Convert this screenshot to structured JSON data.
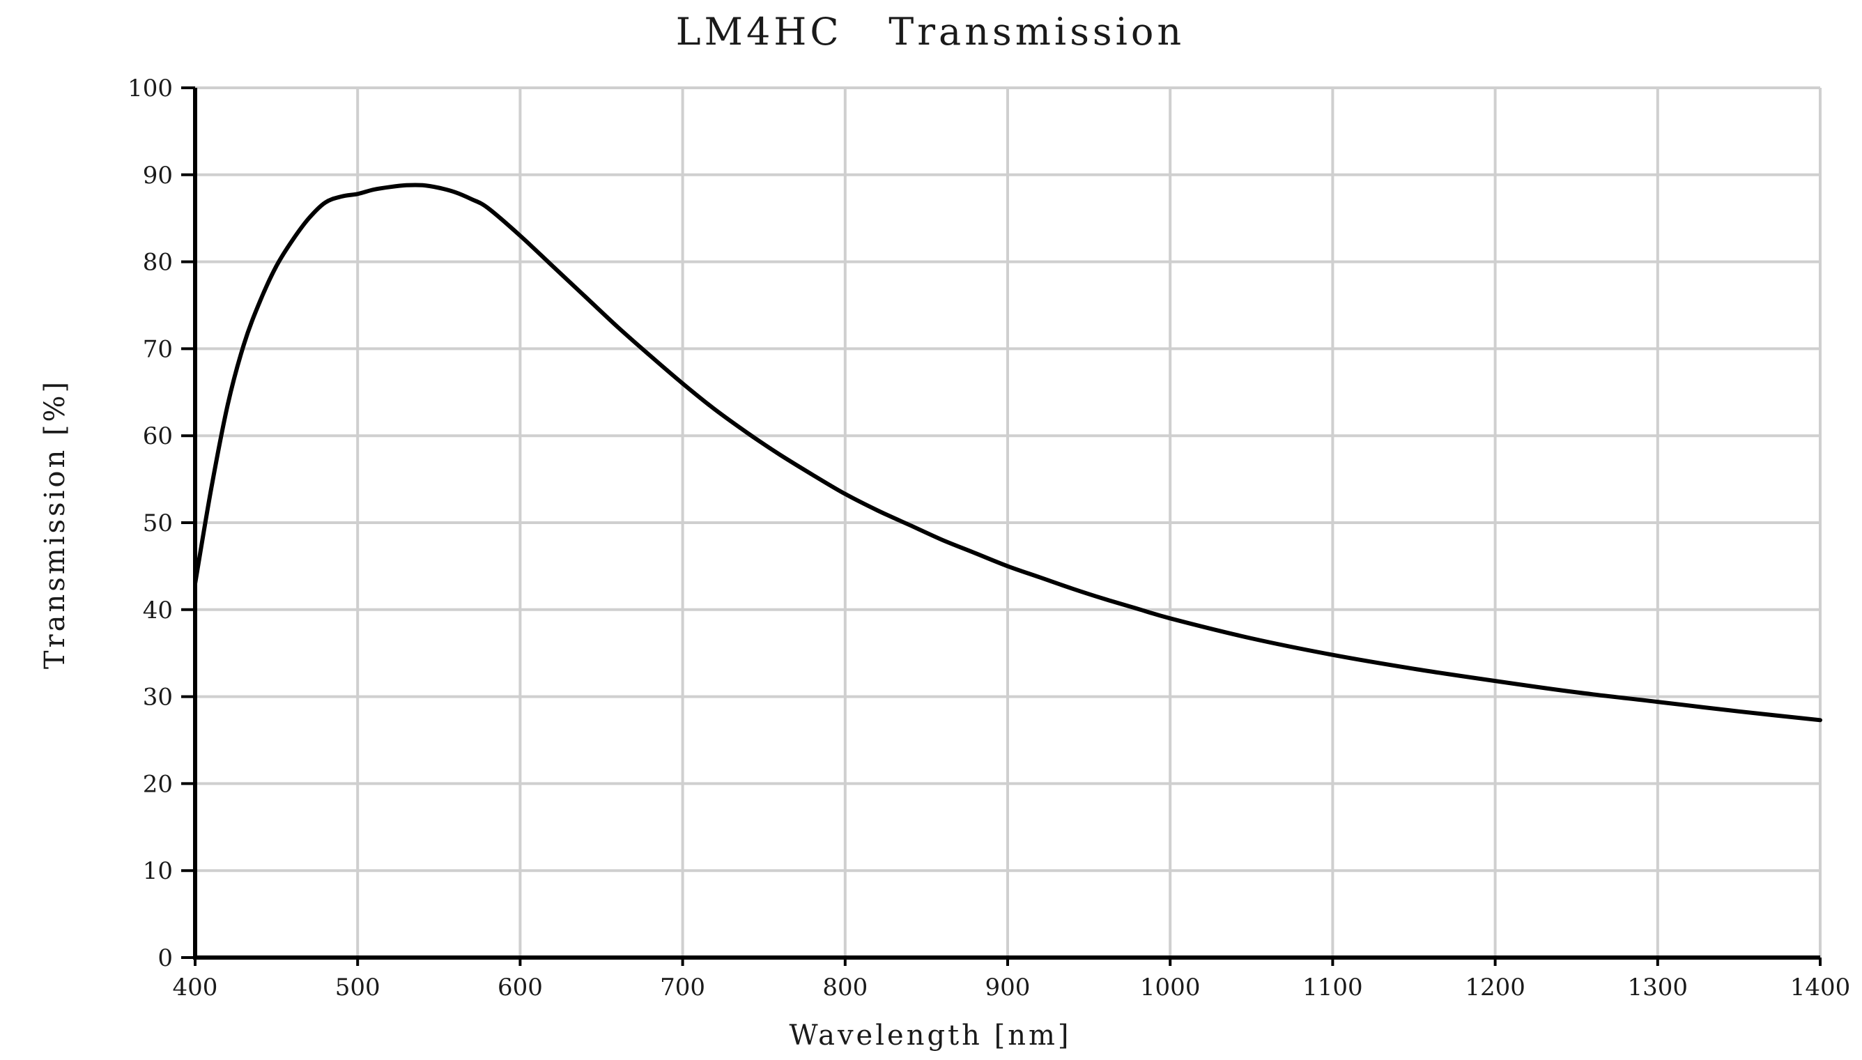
{
  "chart_data": {
    "type": "line",
    "title": "LM4HC   Transmission",
    "xlabel": "Wavelength [nm]",
    "ylabel": "Transmission [%]",
    "xlim": [
      400,
      1400
    ],
    "ylim": [
      0,
      100
    ],
    "x_ticks": [
      400,
      500,
      600,
      700,
      800,
      900,
      1000,
      1100,
      1200,
      1300,
      1400
    ],
    "y_ticks": [
      0,
      10,
      20,
      30,
      40,
      50,
      60,
      70,
      80,
      90,
      100
    ],
    "grid": true,
    "series": [
      {
        "color": "#000000",
        "x": [
          400,
          410,
          420,
          430,
          440,
          450,
          460,
          470,
          480,
          490,
          500,
          510,
          520,
          530,
          540,
          550,
          560,
          570,
          580,
          600,
          620,
          640,
          660,
          680,
          700,
          720,
          740,
          760,
          780,
          800,
          820,
          840,
          860,
          880,
          900,
          920,
          940,
          960,
          980,
          1000,
          1050,
          1100,
          1150,
          1200,
          1250,
          1300,
          1350,
          1400
        ],
        "y": [
          43,
          54,
          63.5,
          70.5,
          75.5,
          79.5,
          82.5,
          85,
          86.8,
          87.5,
          87.8,
          88.3,
          88.6,
          88.8,
          88.8,
          88.5,
          88,
          87.2,
          86.2,
          83,
          79.5,
          76,
          72.5,
          69.2,
          66,
          63,
          60.3,
          57.8,
          55.5,
          53.3,
          51.4,
          49.7,
          48,
          46.5,
          45,
          43.7,
          42.4,
          41.2,
          40.1,
          39,
          36.7,
          34.8,
          33.2,
          31.8,
          30.5,
          29.4,
          28.3,
          27.3
        ]
      }
    ]
  }
}
